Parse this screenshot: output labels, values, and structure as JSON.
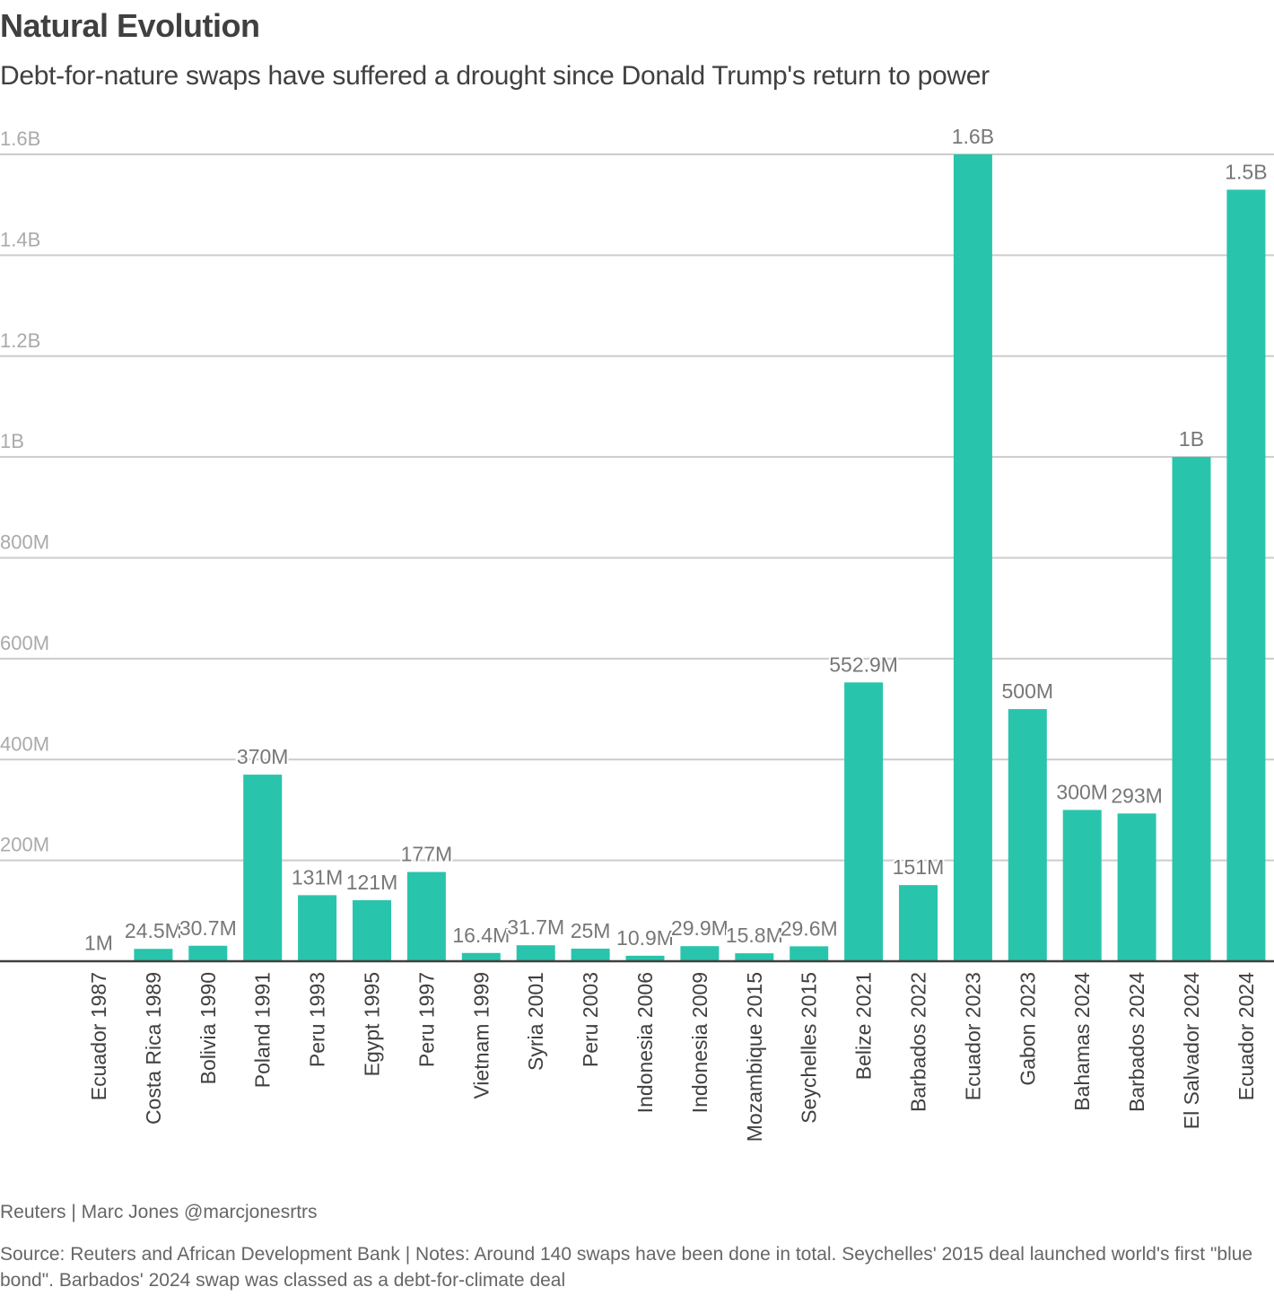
{
  "header": {
    "title": "Natural Evolution",
    "subtitle": "Debt-for-nature swaps have suffered a drought since Donald Trump's return to power"
  },
  "footer": {
    "byline": "Reuters | Marc Jones @marcjonesrtrs",
    "notes": "Source: Reuters and African Development Bank | Notes: Around 140 swaps have been done in total. Seychelles' 2015 deal launched world's first \"blue bond\". Barbados' 2024 swap was classed as a debt-for-climate deal"
  },
  "colors": {
    "bar": "#29c4ac",
    "gridline": "#cccccc",
    "baseline": "#404040",
    "tick_label": "#aaaaaa",
    "data_label": "#777777",
    "category_label": "#404040"
  },
  "chart_data": {
    "type": "bar",
    "title": "Natural Evolution",
    "subtitle": "Debt-for-nature swaps have suffered a drought since Donald Trump's return to power",
    "xlabel": "",
    "ylabel": "",
    "ylim": [
      0,
      1600000000
    ],
    "grid": true,
    "legend": "none",
    "yticks": [
      {
        "value": 200000000,
        "label": "200M"
      },
      {
        "value": 400000000,
        "label": "400M"
      },
      {
        "value": 600000000,
        "label": "600M"
      },
      {
        "value": 800000000,
        "label": "800M"
      },
      {
        "value": 1000000000,
        "label": "1B"
      },
      {
        "value": 1200000000,
        "label": "1.2B"
      },
      {
        "value": 1400000000,
        "label": "1.4B"
      },
      {
        "value": 1600000000,
        "label": "1.6B"
      }
    ],
    "categories": [
      "Ecuador 1987",
      "Costa Rica 1989",
      "Bolivia 1990",
      "Poland 1991",
      "Peru 1993",
      "Egypt 1995",
      "Peru 1997",
      "Vietnam 1999",
      "Syria 2001",
      "Peru 2003",
      "Indonesia 2006",
      "Indonesia 2009",
      "Mozambique 2015",
      "Seychelles 2015",
      "Belize 2021",
      "Barbados 2022",
      "Ecuador 2023",
      "Gabon 2023",
      "Bahamas 2024",
      "Barbados 2024",
      "El Salvador 2024",
      "Ecuador 2024"
    ],
    "values": [
      1000000,
      24500000,
      30700000,
      370000000,
      131000000,
      121000000,
      177000000,
      16400000,
      31700000,
      25000000,
      10900000,
      29900000,
      15800000,
      29600000,
      552900000,
      151000000,
      1600000000,
      500000000,
      300000000,
      293000000,
      1000000000,
      1530000000
    ],
    "data_labels": [
      "1M",
      "24.5M",
      "30.7M",
      "370M",
      "131M",
      "121M",
      "177M",
      "16.4M",
      "31.7M",
      "25M",
      "10.9M",
      "29.9M",
      "15.8M",
      "29.6M",
      "552.9M",
      "151M",
      "1.6B",
      "500M",
      "300M",
      "293M",
      "1B",
      "1.5B"
    ]
  }
}
